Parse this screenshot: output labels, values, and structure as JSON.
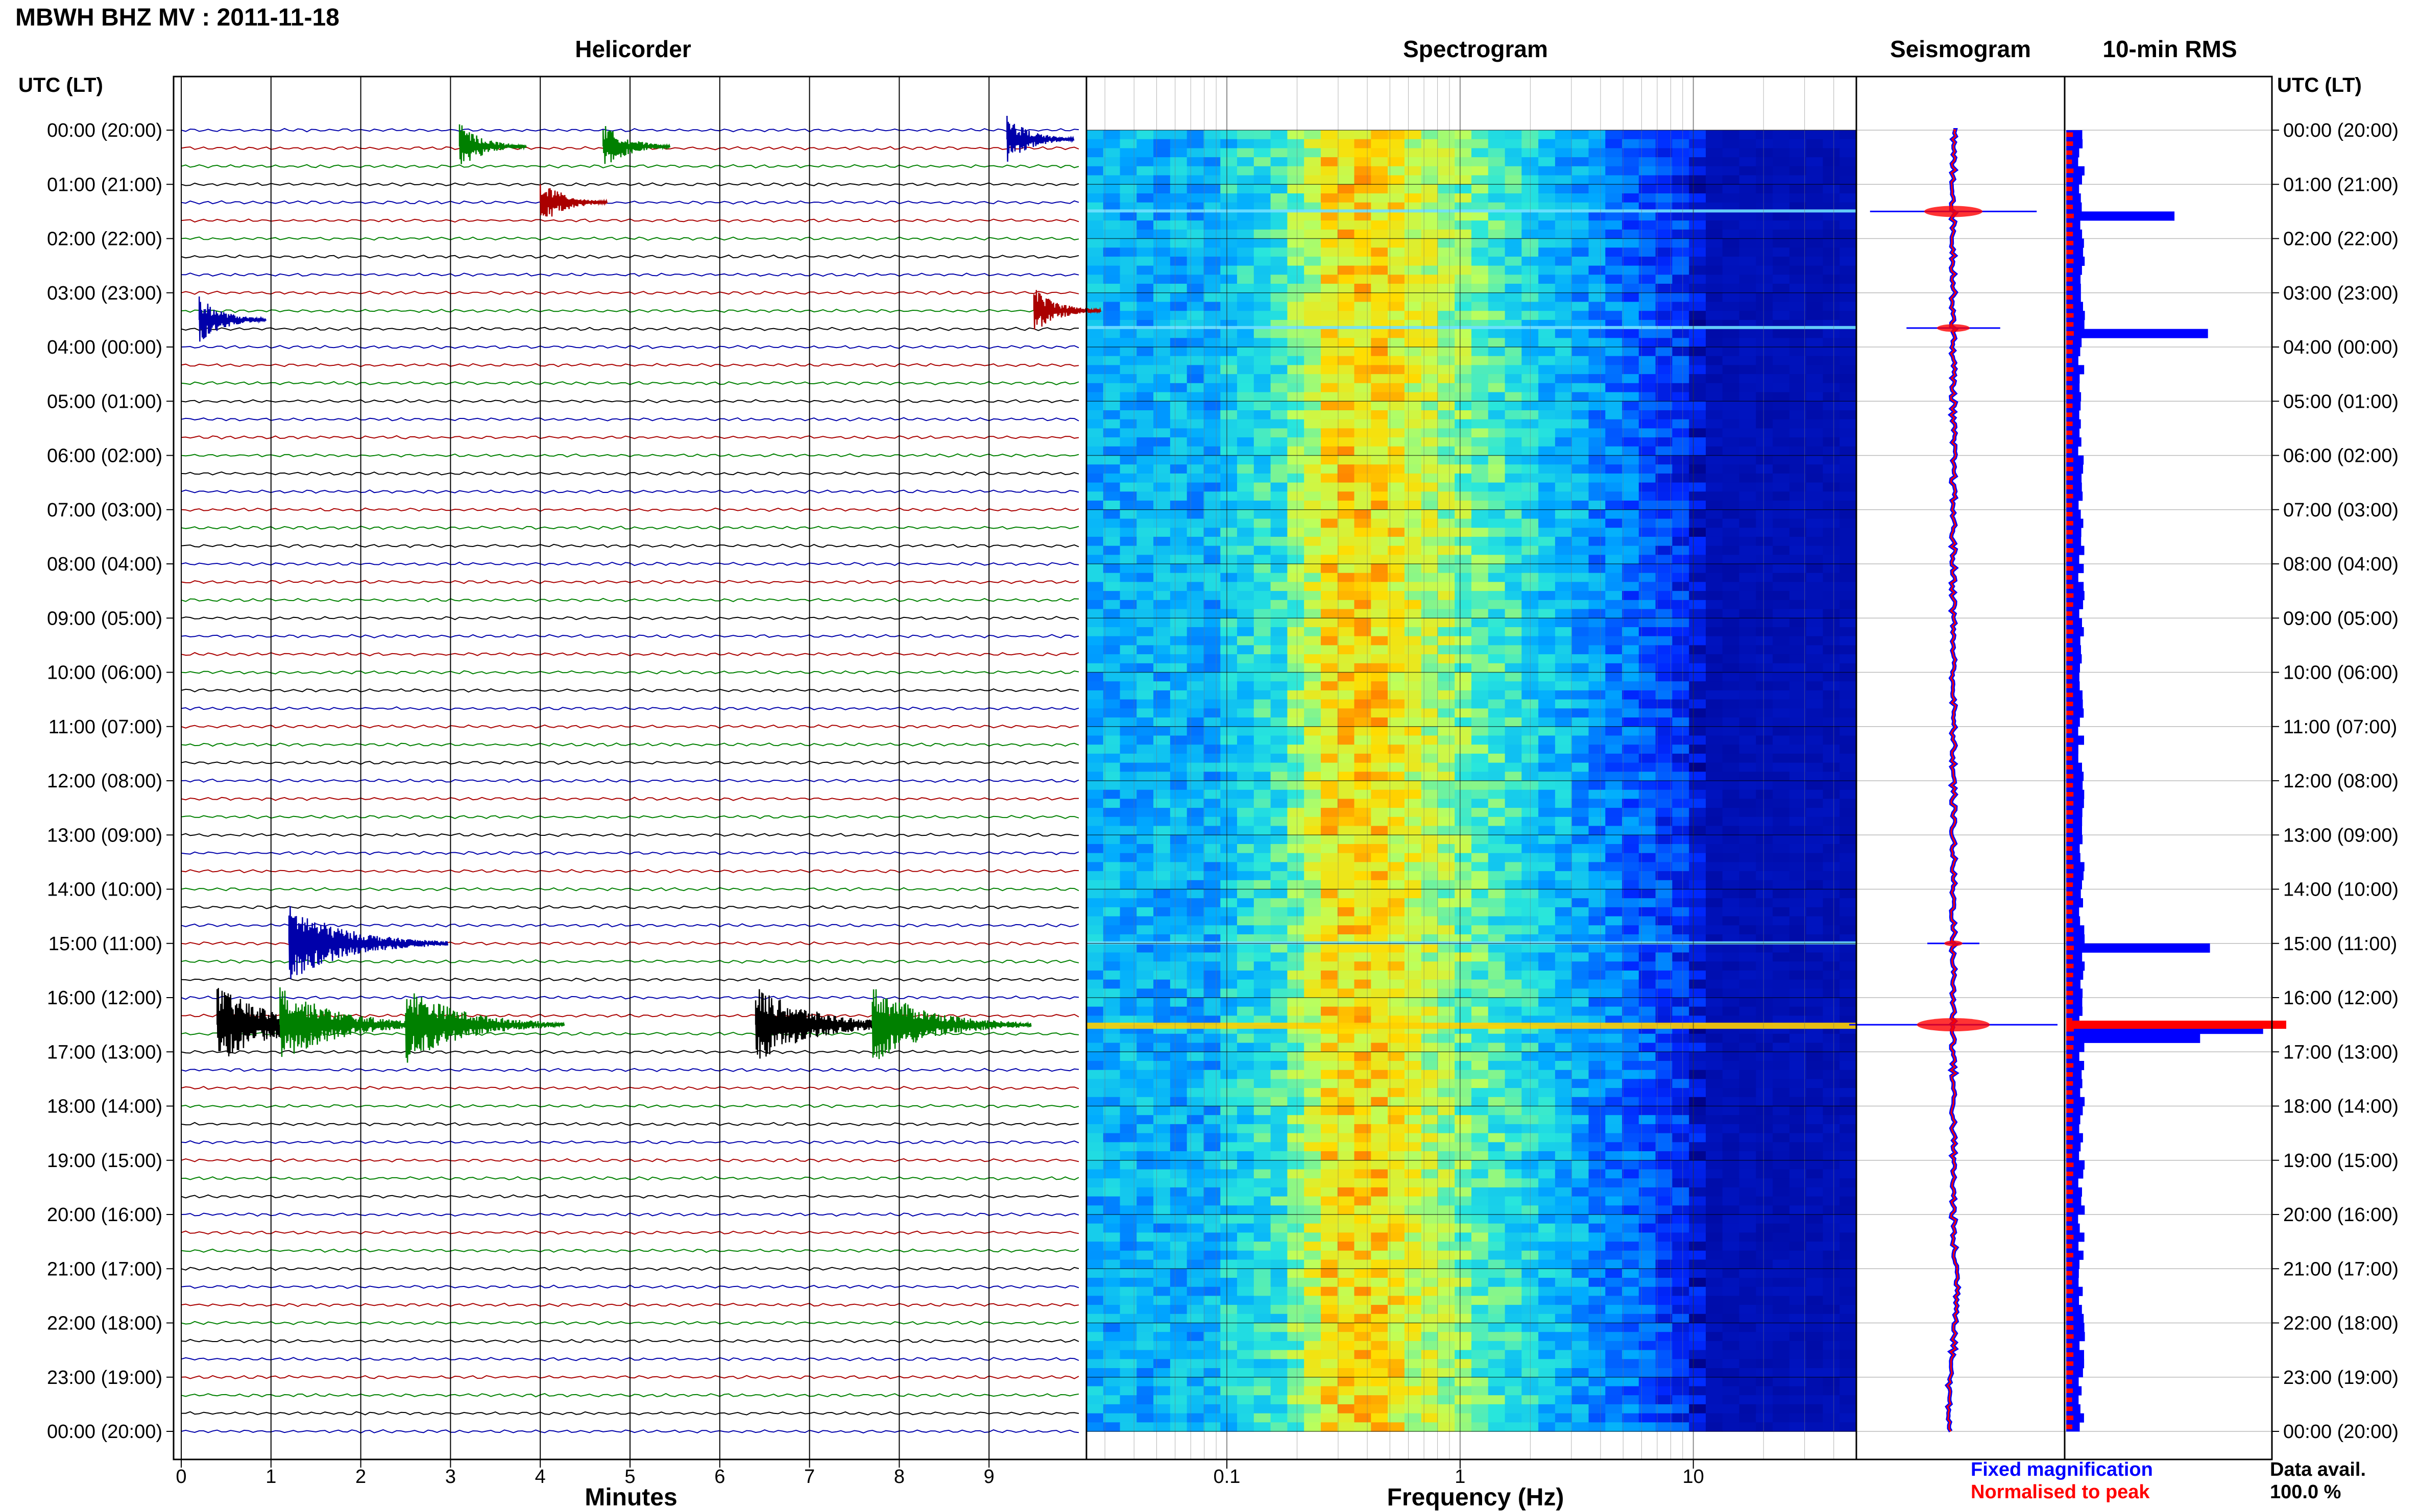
{
  "header": {
    "station_title": "MBWH BHZ MV : 2011-11-18",
    "utc_lt_left": "UTC (LT)",
    "utc_lt_right": "UTC (LT)"
  },
  "panels": {
    "helicorder": "Helicorder",
    "spectrogram": "Spectrogram",
    "seismogram": "Seismogram",
    "rms": "10-min RMS"
  },
  "time_labels": [
    "00:00 (20:00)",
    "01:00 (21:00)",
    "02:00 (22:00)",
    "03:00 (23:00)",
    "04:00 (00:00)",
    "05:00 (01:00)",
    "06:00 (02:00)",
    "07:00 (03:00)",
    "08:00 (04:00)",
    "09:00 (05:00)",
    "10:00 (06:00)",
    "11:00 (07:00)",
    "12:00 (08:00)",
    "13:00 (09:00)",
    "14:00 (10:00)",
    "15:00 (11:00)",
    "16:00 (12:00)",
    "17:00 (13:00)",
    "18:00 (14:00)",
    "19:00 (15:00)",
    "20:00 (16:00)",
    "21:00 (17:00)",
    "22:00 (18:00)",
    "23:00 (19:00)",
    "00:00 (20:00)"
  ],
  "legend": {
    "fixed": "Fixed magnification",
    "normalised": "Normalised to peak",
    "fixed_color": "#0000ff",
    "normalised_color": "#ff0000"
  },
  "data_avail": {
    "label": "Data avail.",
    "value": "100.0 %"
  },
  "chart_data": [
    {
      "type": "line",
      "title": "Helicorder",
      "xlabel": "Minutes",
      "xticks": [
        "0",
        "1",
        "2",
        "3",
        "4",
        "5",
        "6",
        "7",
        "8",
        "9"
      ],
      "xlim": [
        0,
        10
      ],
      "trace_colors": [
        "#0000aa",
        "#aa0000",
        "#008000",
        "#000000"
      ],
      "events": [
        {
          "hour": 0.3,
          "minute": 3.1,
          "color": "#008000"
        },
        {
          "hour": 0.3,
          "minute": 4.7,
          "color": "#008000"
        },
        {
          "hour": 0.17,
          "minute": 9.2,
          "color": "#0000aa"
        },
        {
          "hour": 1.33,
          "minute": 4.0,
          "color": "#aa0000"
        },
        {
          "hour": 3.5,
          "minute": 0.2,
          "color": "#0000aa"
        },
        {
          "hour": 3.33,
          "minute": 9.5,
          "color": "#aa0000"
        },
        {
          "hour": 15.0,
          "minute": 1.2,
          "color": "#0000aa"
        },
        {
          "hour": 16.5,
          "minute": 0.4,
          "color": "#000000"
        },
        {
          "hour": 16.5,
          "minute": 1.1,
          "color": "#008000"
        },
        {
          "hour": 16.5,
          "minute": 2.5,
          "color": "#008000"
        },
        {
          "hour": 16.5,
          "minute": 6.4,
          "color": "#000000"
        },
        {
          "hour": 16.5,
          "minute": 7.7,
          "color": "#008000"
        }
      ]
    },
    {
      "type": "heatmap",
      "title": "Spectrogram",
      "xlabel": "Frequency (Hz)",
      "xscale": "log",
      "xticks": [
        "0.1",
        "1",
        "10"
      ],
      "xlim": [
        0.025,
        50
      ],
      "ylim": [
        0,
        24
      ],
      "event_lines": [
        1.5,
        3.65,
        15.0,
        16.5
      ]
    },
    {
      "type": "line",
      "title": "Seismogram",
      "ylim": [
        0,
        24
      ],
      "events": [
        {
          "hour": 1.5,
          "amp": 0.8
        },
        {
          "hour": 3.65,
          "amp": 0.45
        },
        {
          "hour": 15.0,
          "amp": 0.25
        },
        {
          "hour": 16.5,
          "amp": 1.0
        }
      ]
    },
    {
      "type": "bar",
      "title": "10-min RMS",
      "ylim": [
        0,
        24
      ],
      "peaks": [
        {
          "hour": 1.5,
          "value": 0.55
        },
        {
          "hour": 3.65,
          "value": 0.72
        },
        {
          "hour": 15.0,
          "value": 0.73
        },
        {
          "hour": 16.5,
          "value": 1.0
        },
        {
          "hour": 16.67,
          "value": 0.68
        }
      ]
    }
  ]
}
